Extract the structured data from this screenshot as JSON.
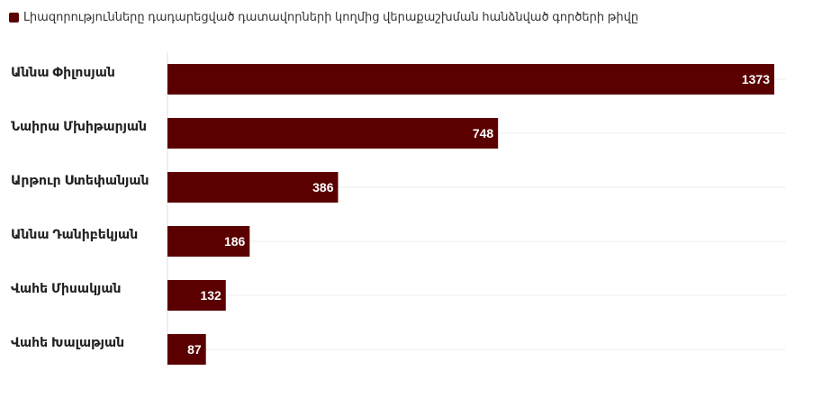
{
  "legend": {
    "label": "Լիազորությունները դադարեցված դատավորների կողմից վերաքաշխման հանձնված գործերի թիվը"
  },
  "colors": {
    "bar": "#5a0000",
    "grid": "#ececec",
    "axis": "#dddddd"
  },
  "chart_data": {
    "type": "bar",
    "orientation": "horizontal",
    "categories": [
      "Աննա Փիլոսյան",
      "Նաիրա Մխիթարյան",
      "Արթուր Ստեփանյան",
      "Աննա Դանիբեկյան",
      "Վահե Միսակյան",
      "Վահե Խալաթյան"
    ],
    "series": [
      {
        "name": "Լիազորությունները դադարեցված դատավորների կողմից վերաքաշխման հանձնված գործերի թիվը",
        "values": [
          1373,
          748,
          386,
          186,
          132,
          87
        ]
      }
    ],
    "xlim": [
      0,
      1373
    ],
    "grid": true,
    "legend_position": "top-left"
  }
}
